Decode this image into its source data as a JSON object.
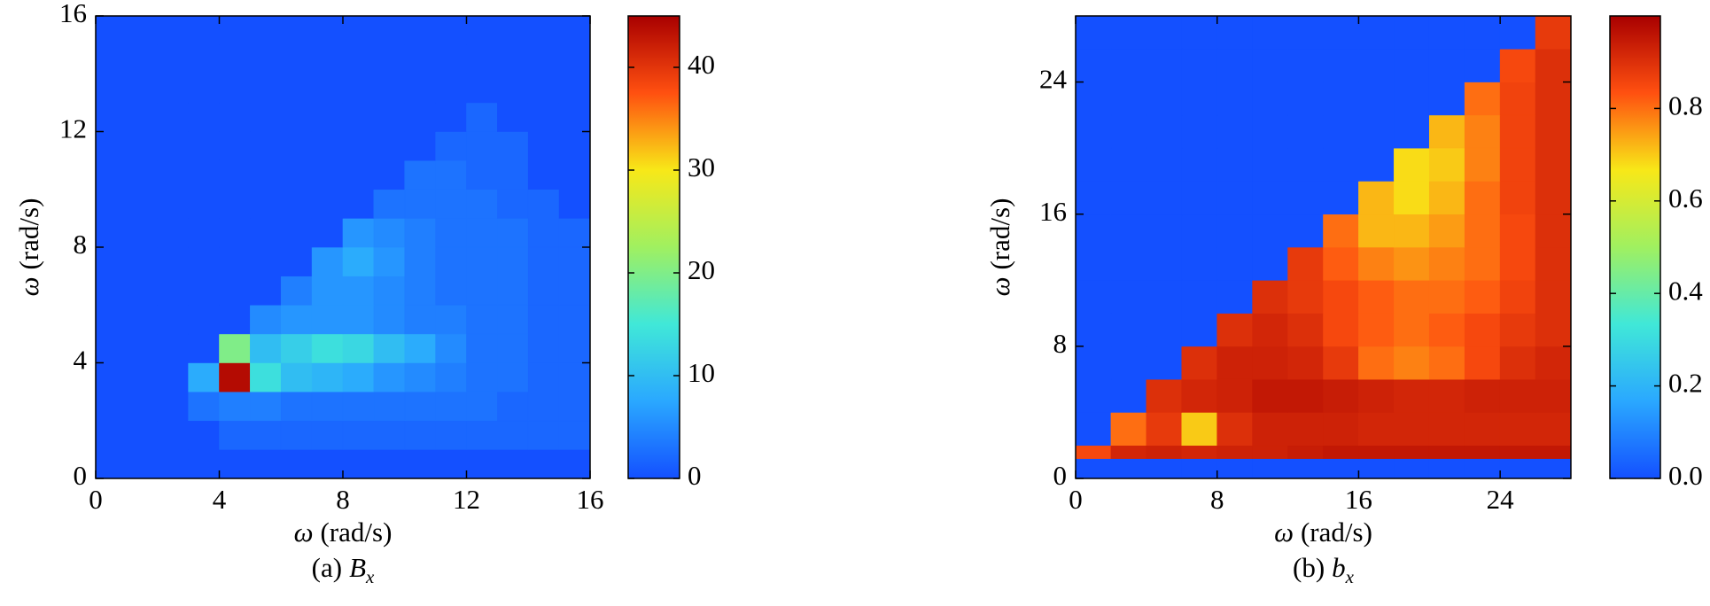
{
  "chart_data": [
    {
      "type": "heatmap",
      "xbins": [
        0,
        1,
        2,
        3,
        4,
        5,
        6,
        7,
        8,
        9,
        10,
        11,
        12,
        13,
        14,
        15,
        16
      ],
      "ybins": [
        0,
        1,
        2,
        3,
        4,
        5,
        6,
        7,
        8,
        9,
        10,
        11,
        12,
        13,
        14,
        15,
        16
      ],
      "z": [
        [
          0,
          0,
          0,
          0,
          0,
          0,
          0,
          0,
          0,
          0,
          0,
          0,
          0,
          0,
          0,
          0
        ],
        [
          0,
          0,
          0,
          0,
          2,
          2,
          2,
          2,
          2,
          2,
          2,
          2,
          2,
          2,
          2,
          2
        ],
        [
          0,
          0,
          0,
          3,
          4,
          4,
          3,
          3,
          3,
          3,
          3,
          3,
          3,
          2,
          2,
          2
        ],
        [
          0,
          0,
          0,
          8,
          44,
          14,
          10,
          9,
          8,
          6,
          5,
          4,
          3,
          3,
          2,
          2
        ],
        [
          0,
          0,
          0,
          0,
          20,
          10,
          12,
          14,
          13,
          10,
          8,
          5,
          3,
          3,
          2,
          2
        ],
        [
          0,
          0,
          0,
          0,
          0,
          5,
          6,
          6,
          6,
          5,
          4,
          4,
          3,
          3,
          2,
          2
        ],
        [
          0,
          0,
          0,
          0,
          0,
          0,
          4,
          6,
          6,
          5,
          4,
          3,
          3,
          3,
          2,
          2
        ],
        [
          0,
          0,
          0,
          0,
          0,
          0,
          0,
          6,
          8,
          6,
          4,
          3,
          3,
          3,
          2,
          2
        ],
        [
          0,
          0,
          0,
          0,
          0,
          0,
          0,
          0,
          6,
          5,
          4,
          3,
          3,
          3,
          2,
          2
        ],
        [
          0,
          0,
          0,
          0,
          0,
          0,
          0,
          0,
          0,
          3,
          3,
          3,
          3,
          2,
          2,
          0
        ],
        [
          0,
          0,
          0,
          0,
          0,
          0,
          0,
          0,
          0,
          0,
          3,
          3,
          2,
          2,
          0,
          0
        ],
        [
          0,
          0,
          0,
          0,
          0,
          0,
          0,
          0,
          0,
          0,
          0,
          2,
          2,
          2,
          0,
          0
        ],
        [
          0,
          0,
          0,
          0,
          0,
          0,
          0,
          0,
          0,
          0,
          0,
          0,
          2,
          0,
          0,
          0
        ],
        [
          0,
          0,
          0,
          0,
          0,
          0,
          0,
          0,
          0,
          0,
          0,
          0,
          0,
          0,
          0,
          0
        ],
        [
          0,
          0,
          0,
          0,
          0,
          0,
          0,
          0,
          0,
          0,
          0,
          0,
          0,
          0,
          0,
          0
        ],
        [
          0,
          0,
          0,
          0,
          0,
          0,
          0,
          0,
          0,
          0,
          0,
          0,
          0,
          0,
          0,
          0
        ]
      ],
      "xlim": [
        0,
        16
      ],
      "ylim": [
        0,
        16
      ],
      "xticks": [
        0,
        4,
        8,
        12,
        16
      ],
      "yticks": [
        0,
        4,
        8,
        12,
        16
      ],
      "clim": [
        0,
        45
      ],
      "cticks": [
        0,
        10,
        20,
        30,
        40
      ],
      "colormap": [
        "#1450ff",
        "#2aa8ff",
        "#40e8d8",
        "#a0f060",
        "#f8e818",
        "#ff5010",
        "#a80000"
      ],
      "x_label_symbol": "ω",
      "x_label_unit": "(rad/s)",
      "y_label_symbol": "ω",
      "y_label_unit": "(rad/s)",
      "caption_prefix": "(a)",
      "caption_symbol": "B",
      "caption_subscript": "x"
    },
    {
      "type": "heatmap",
      "xbins": [
        0,
        2,
        4,
        6,
        8,
        10,
        12,
        14,
        16,
        18,
        20,
        22,
        24,
        26,
        28
      ],
      "ybins": [
        0,
        1.2,
        2,
        4,
        6,
        8,
        10,
        12,
        14,
        16,
        18,
        20,
        22,
        24,
        26,
        28
      ],
      "z": [
        [
          0,
          0,
          0,
          0,
          0,
          0,
          0,
          0,
          0,
          0,
          0,
          0,
          0,
          0
        ],
        [
          0.85,
          0.92,
          0.93,
          0.92,
          0.93,
          0.93,
          0.94,
          0.95,
          0.95,
          0.95,
          0.95,
          0.95,
          0.95,
          0.95
        ],
        [
          0,
          0.8,
          0.88,
          0.7,
          0.9,
          0.93,
          0.93,
          0.93,
          0.92,
          0.92,
          0.92,
          0.92,
          0.92,
          0.92
        ],
        [
          0,
          0,
          0.9,
          0.92,
          0.93,
          0.95,
          0.95,
          0.94,
          0.93,
          0.92,
          0.92,
          0.93,
          0.93,
          0.93
        ],
        [
          0,
          0,
          0,
          0.9,
          0.93,
          0.93,
          0.92,
          0.88,
          0.8,
          0.78,
          0.8,
          0.85,
          0.9,
          0.92
        ],
        [
          0,
          0,
          0,
          0,
          0.9,
          0.92,
          0.9,
          0.85,
          0.82,
          0.8,
          0.82,
          0.85,
          0.88,
          0.9
        ],
        [
          0,
          0,
          0,
          0,
          0,
          0.9,
          0.88,
          0.85,
          0.82,
          0.8,
          0.8,
          0.82,
          0.86,
          0.9
        ],
        [
          0,
          0,
          0,
          0,
          0,
          0,
          0.88,
          0.82,
          0.78,
          0.76,
          0.78,
          0.8,
          0.85,
          0.9
        ],
        [
          0,
          0,
          0,
          0,
          0,
          0,
          0,
          0.8,
          0.72,
          0.72,
          0.75,
          0.8,
          0.85,
          0.9
        ],
        [
          0,
          0,
          0,
          0,
          0,
          0,
          0,
          0,
          0.72,
          0.68,
          0.72,
          0.8,
          0.86,
          0.9
        ],
        [
          0,
          0,
          0,
          0,
          0,
          0,
          0,
          0,
          0,
          0.68,
          0.7,
          0.78,
          0.86,
          0.9
        ],
        [
          0,
          0,
          0,
          0,
          0,
          0,
          0,
          0,
          0,
          0,
          0.72,
          0.78,
          0.86,
          0.9
        ],
        [
          0,
          0,
          0,
          0,
          0,
          0,
          0,
          0,
          0,
          0,
          0,
          0.8,
          0.86,
          0.9
        ],
        [
          0,
          0,
          0,
          0,
          0,
          0,
          0,
          0,
          0,
          0,
          0,
          0,
          0.85,
          0.9
        ],
        [
          0,
          0,
          0,
          0,
          0,
          0,
          0,
          0,
          0,
          0,
          0,
          0,
          0,
          0.88
        ]
      ],
      "xlim": [
        0,
        28
      ],
      "ylim": [
        0,
        28
      ],
      "xticks": [
        0,
        8,
        16,
        24
      ],
      "yticks": [
        0,
        8,
        16,
        24
      ],
      "clim": [
        0,
        1
      ],
      "cticks": [
        {
          "value": 0,
          "label": "0.0"
        },
        0.2,
        0.4,
        0.6,
        0.8
      ],
      "colormap": [
        "#1450ff",
        "#2aa8ff",
        "#40e8d8",
        "#a0f060",
        "#f8e818",
        "#ff5010",
        "#a80000"
      ],
      "x_label_symbol": "ω",
      "x_label_unit": "(rad/s)",
      "y_label_symbol": "ω",
      "y_label_unit": "(rad/s)",
      "caption_prefix": "(b)",
      "caption_symbol": "b",
      "caption_subscript": "x"
    }
  ]
}
